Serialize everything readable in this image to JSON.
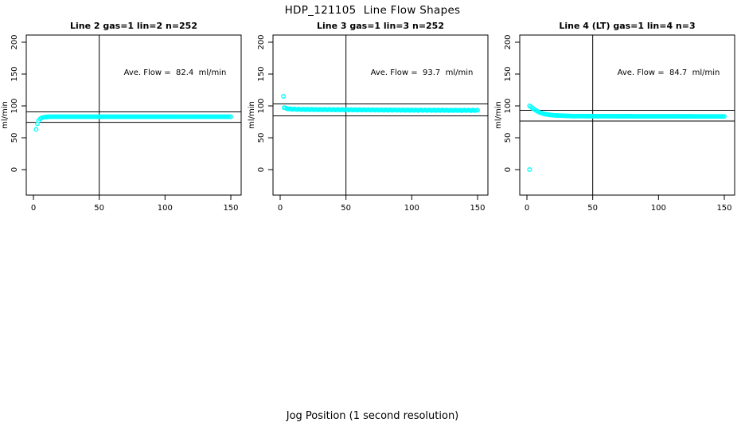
{
  "figure": {
    "title": "HDP_121105  Line Flow Shapes",
    "xlabel": "Jog Position (1 second resolution)"
  },
  "chart_data": {
    "type": "scatter",
    "title": "HDP_121105  Line Flow Shapes",
    "xlabel": "Jog Position (1 second resolution)",
    "ylabel": "ml/min",
    "xlim": [
      0,
      150
    ],
    "ylim": [
      0,
      200
    ],
    "x_ticks": [
      0,
      50,
      100,
      150
    ],
    "y_ticks": [
      0,
      50,
      100,
      150,
      200
    ],
    "grid": false,
    "legend": "none",
    "point_color": "#00FFFF",
    "line_color": "#000000",
    "vline_x": 50,
    "panels": [
      {
        "title": "Line 2 gas=1 lin=2 n=252",
        "ave_flow": 82.4,
        "ave_flow_label": "Ave. Flow =  82.4  ml/min",
        "reference_lines": [
          90.6,
          74.2
        ],
        "vline_x": 50,
        "outliers": [
          [
            2,
            63
          ]
        ],
        "curve_breakpoints": [
          [
            3,
            72
          ],
          [
            4,
            77
          ],
          [
            5,
            79.5
          ],
          [
            6,
            81
          ],
          [
            8,
            82.3
          ],
          [
            12,
            83
          ],
          [
            40,
            83
          ],
          [
            150,
            83
          ]
        ],
        "x_start": 3,
        "x_end": 150,
        "jitter_amp": 0
      },
      {
        "title": "Line 3 gas=1 lin=3 n=252",
        "ave_flow": 93.7,
        "ave_flow_label": "Ave. Flow =  93.7  ml/min",
        "reference_lines": [
          103.1,
          84.3
        ],
        "vline_x": 50,
        "outliers": [
          [
            2.5,
            115
          ]
        ],
        "curve_breakpoints": [
          [
            3,
            97.5
          ],
          [
            4,
            96.5
          ],
          [
            6,
            95.5
          ],
          [
            9,
            95
          ],
          [
            15,
            94.5
          ],
          [
            30,
            94.2
          ],
          [
            60,
            93.8
          ],
          [
            100,
            93.3
          ],
          [
            150,
            93
          ]
        ],
        "x_start": 3,
        "x_end": 150,
        "jitter_amp": 0.45
      },
      {
        "title": "Line 4 (LT) gas=1 lin=4 n=3",
        "ave_flow": 84.7,
        "ave_flow_label": "Ave. Flow =  84.7  ml/min",
        "reference_lines": [
          93.2,
          76.2
        ],
        "vline_x": 50,
        "outliers": [
          [
            2,
            0
          ]
        ],
        "curve_breakpoints": [
          [
            2,
            100
          ],
          [
            4,
            97
          ],
          [
            6,
            94
          ],
          [
            8,
            91.5
          ],
          [
            10,
            89.5
          ],
          [
            13,
            87.5
          ],
          [
            16,
            86.3
          ],
          [
            20,
            85.3
          ],
          [
            25,
            84.8
          ],
          [
            35,
            84
          ],
          [
            60,
            83.8
          ],
          [
            150,
            83.5
          ]
        ],
        "x_start": 2,
        "x_end": 150,
        "jitter_amp": 0
      }
    ]
  }
}
